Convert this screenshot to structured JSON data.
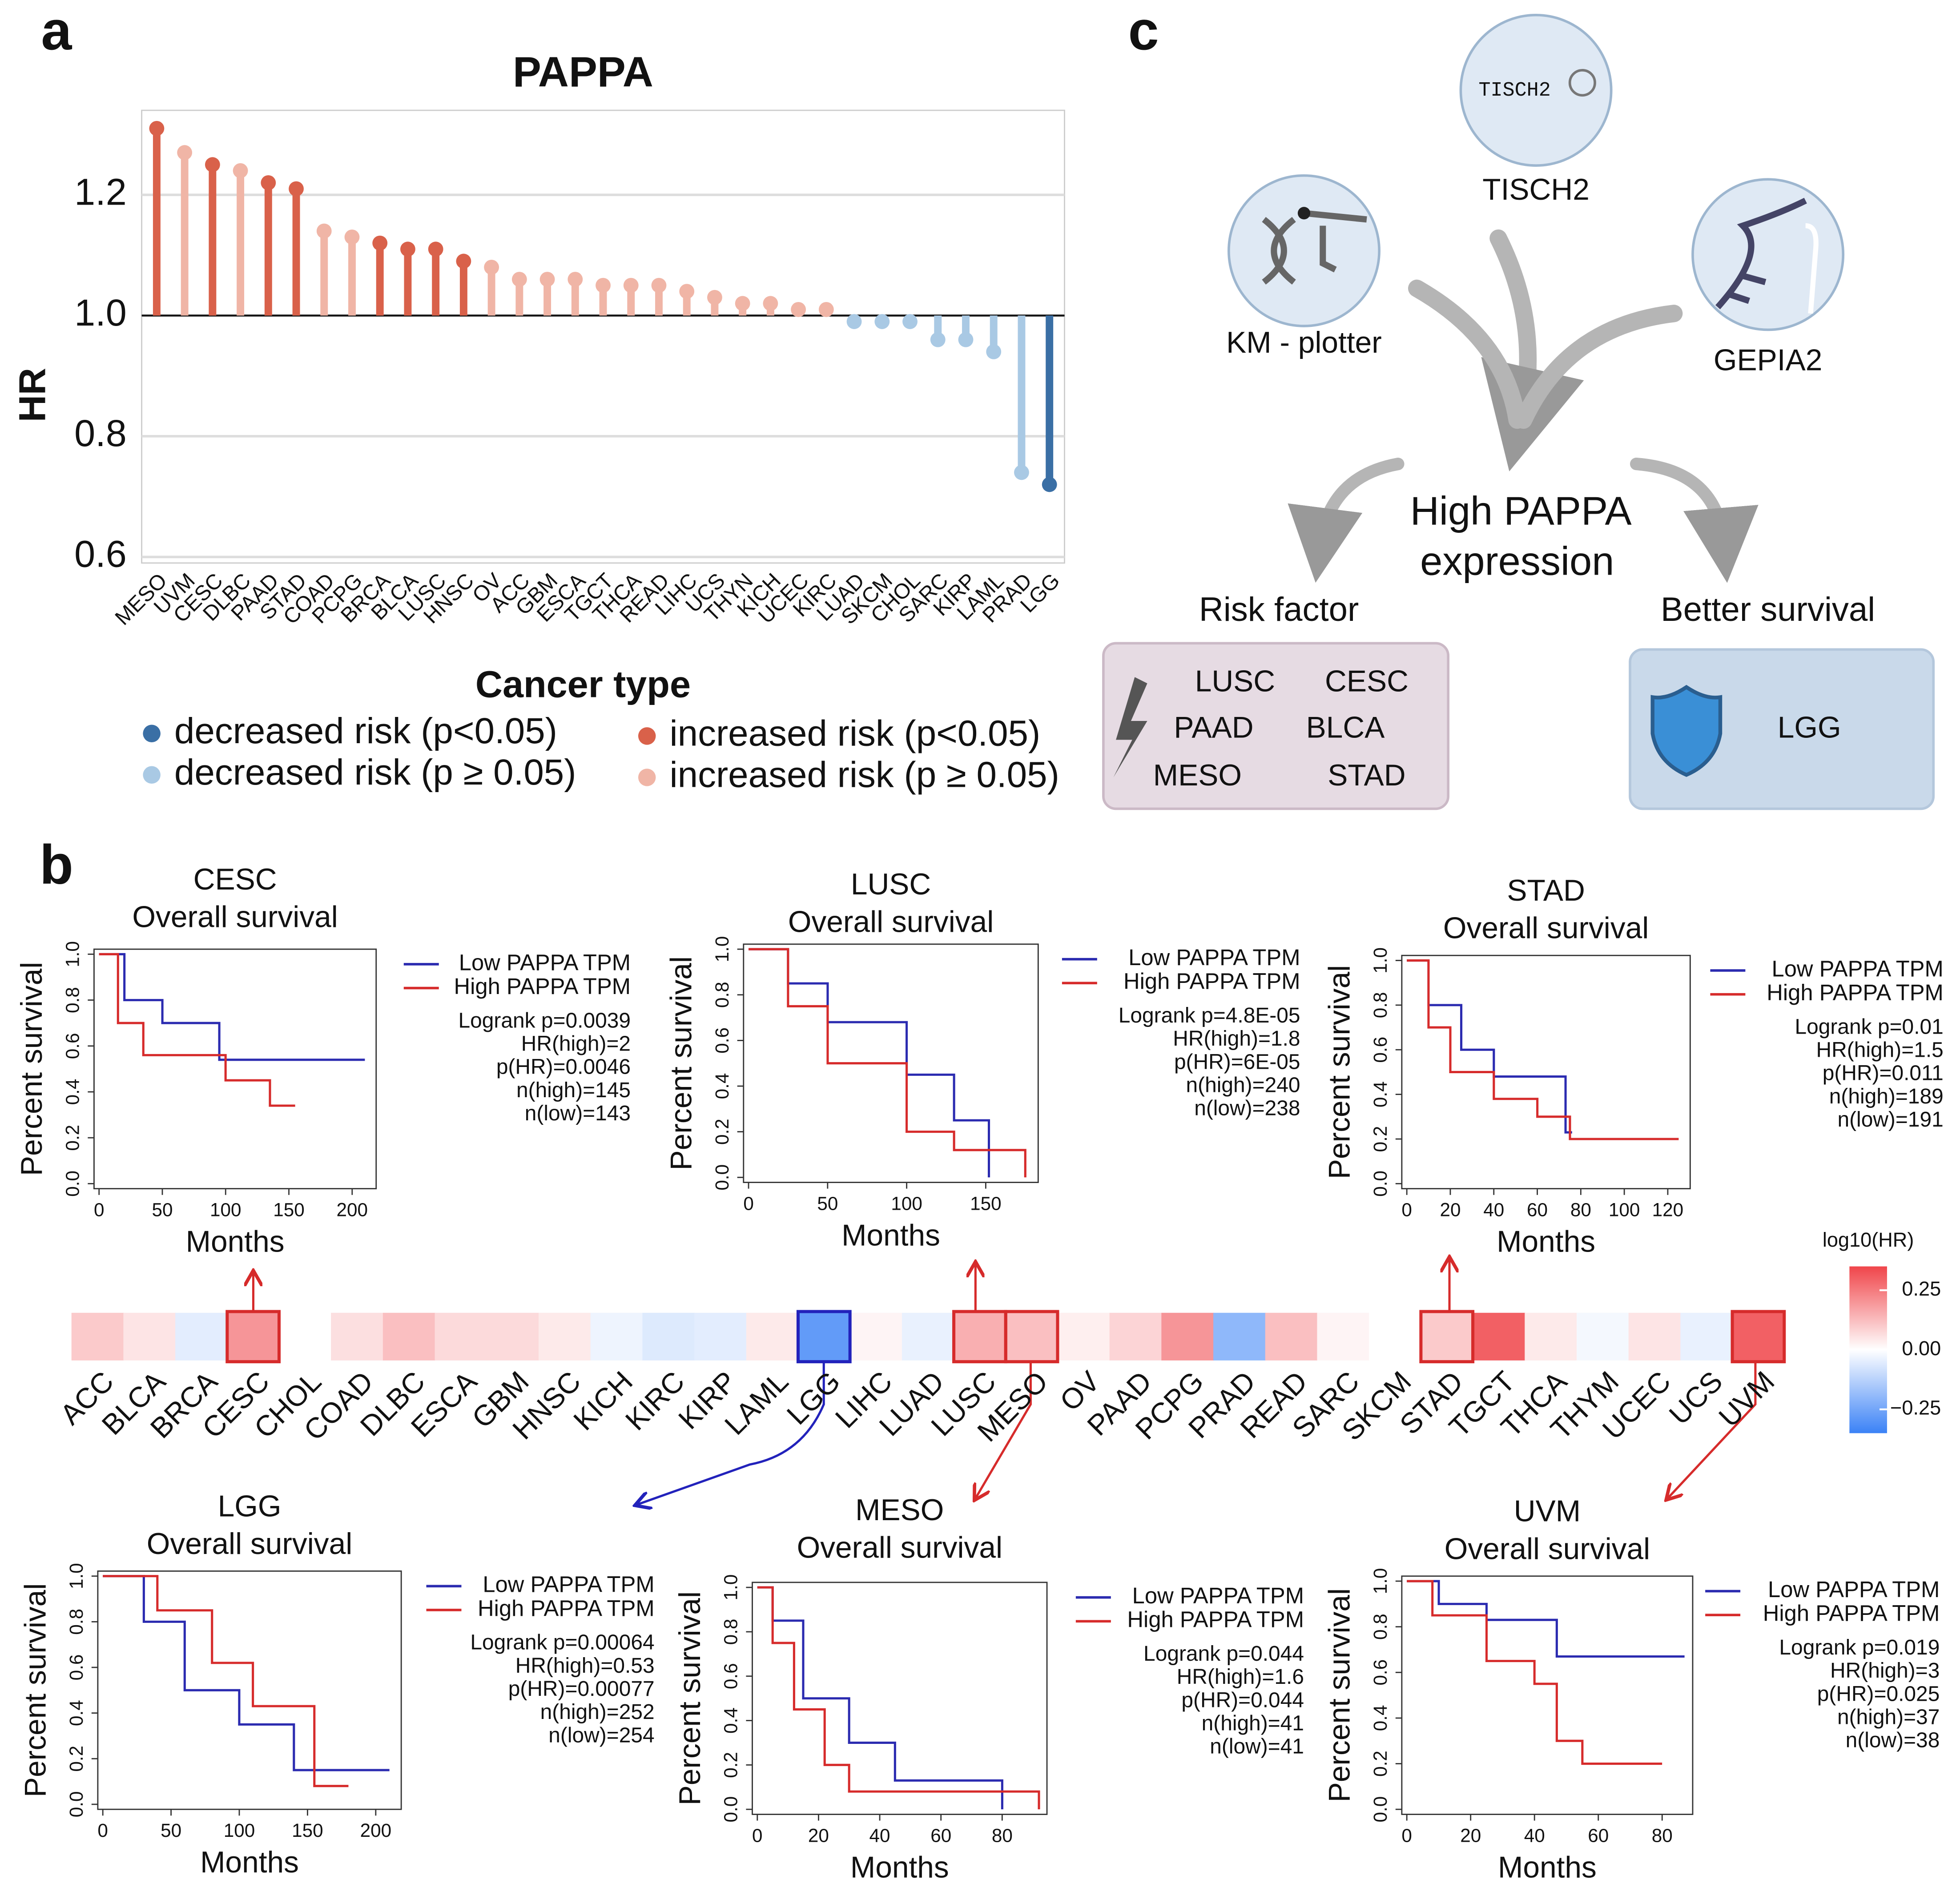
{
  "panel_labels": [
    "a",
    "b",
    "c"
  ],
  "chart_data": [
    {
      "type": "lollipop",
      "title": "PAPPA",
      "ylabel": "HR",
      "xlabel": "Cancer type",
      "categories": [
        "MESO",
        "UVM",
        "CESC",
        "DLBC",
        "PAAD",
        "STAD",
        "COAD",
        "PCPG",
        "BRCA",
        "BLCA",
        "LUSC",
        "HNSC",
        "OV",
        "ACC",
        "GBM",
        "ESCA",
        "TGCT",
        "THCA",
        "READ",
        "LIHC",
        "UCS",
        "THYN",
        "KICH",
        "UCEC",
        "KIRC",
        "LUAD",
        "SKCM",
        "CHOL",
        "SARC",
        "KIRP",
        "LAML",
        "PRAD",
        "LGG"
      ],
      "values": [
        1.31,
        1.27,
        1.25,
        1.24,
        1.22,
        1.21,
        1.14,
        1.13,
        1.12,
        1.11,
        1.11,
        1.09,
        1.08,
        1.06,
        1.06,
        1.06,
        1.05,
        1.05,
        1.05,
        1.04,
        1.03,
        1.02,
        1.02,
        1.01,
        1.01,
        0.99,
        0.99,
        0.99,
        0.96,
        0.96,
        0.94,
        0.74,
        0.72
      ],
      "colors": [
        "#d9614a",
        "#f0b5a6",
        "#d9614a",
        "#f0b5a6",
        "#d9614a",
        "#d9614a",
        "#f0b5a6",
        "#f0b5a6",
        "#d9614a",
        "#d9614a",
        "#d9614a",
        "#d9614a",
        "#f0b5a6",
        "#f0b5a6",
        "#f0b5a6",
        "#f0b5a6",
        "#f0b5a6",
        "#f0b5a6",
        "#f0b5a6",
        "#f0b5a6",
        "#f0b5a6",
        "#f0b5a6",
        "#f0b5a6",
        "#f0b5a6",
        "#f0b5a6",
        "#a9c9e4",
        "#a9c9e4",
        "#a9c9e4",
        "#a9c9e4",
        "#a9c9e4",
        "#a9c9e4",
        "#a9c9e4",
        "#3a6fa5"
      ],
      "baseline": 1,
      "ylim": [
        0.59,
        1.34
      ],
      "yticks": [
        0.6,
        0.8,
        {
          "value": 1,
          "label": "1.0"
        },
        1.2
      ],
      "grid": true,
      "legend": [
        {
          "name": "decreased risk (p<0.05)",
          "color": "#3a6fa5"
        },
        {
          "name": "decreased risk (p ≥ 0.05)",
          "color": "#a9c9e4"
        },
        {
          "name": "increased risk (p<0.05)",
          "color": "#d9614a"
        },
        {
          "name": "increased risk (p ≥ 0.05)",
          "color": "#f0b5a6"
        }
      ]
    },
    {
      "type": "heatmap",
      "title": "log10(HR)",
      "categories": [
        "ACC",
        "BLCA",
        "BRCA",
        "CESC",
        "CHOL",
        "COAD",
        "DLBC",
        "ESCA",
        "GBM",
        "HNSC",
        "KICH",
        "KIRC",
        "KIRP",
        "LAML",
        "LGG",
        "LIHC",
        "LUAD",
        "LUSC",
        "MESO",
        "OV",
        "PAAD",
        "PCPG",
        "PRAD",
        "READ",
        "SARC",
        "SKCM",
        "STAD",
        "TGCT",
        "THCA",
        "THYM",
        "UCEC",
        "UCS",
        "UVM"
      ],
      "values": [
        0.1,
        0.05,
        -0.05,
        0.2,
        0.0,
        0.06,
        0.12,
        0.07,
        0.07,
        0.04,
        -0.03,
        -0.06,
        -0.05,
        0.04,
        -0.28,
        0.02,
        -0.04,
        0.15,
        0.12,
        0.03,
        0.08,
        0.2,
        -0.2,
        0.12,
        0.02,
        0.0,
        0.1,
        0.3,
        0.04,
        -0.02,
        0.05,
        -0.04,
        0.3
      ],
      "highlight_index": [
        3,
        14,
        17,
        18,
        26,
        32
      ],
      "zlim": [
        -0.35,
        0.35
      ],
      "zticks": [
        0.25,
        {
          "value": 0,
          "label": "0.00"
        },
        {
          "value": -0.25,
          "label": "−0.25"
        }
      ]
    },
    {
      "type": "km",
      "title": "CESC",
      "subtitle": "Overall survival",
      "xlabel": "Months",
      "ylabel": "Percent survival",
      "xlim": [
        0,
        215
      ],
      "xticks": [
        0,
        50,
        100,
        150,
        200
      ],
      "ylim": [
        0,
        1
      ],
      "yticks": [
        {
          "value": 0,
          "label": "0.0"
        },
        0.2,
        0.4,
        0.6,
        0.8,
        {
          "value": 1,
          "label": "1.0"
        }
      ],
      "series": [
        {
          "name": "Low PAPPA TPM",
          "color": "#2b2bb0",
          "x": [
            0,
            20,
            20,
            50,
            50,
            95,
            95,
            210
          ],
          "values": [
            1,
            1,
            0.8,
            0.8,
            0.7,
            0.7,
            0.54,
            0.54
          ]
        },
        {
          "name": "High PAPPA TPM",
          "color": "#d62b2b",
          "x": [
            0,
            15,
            15,
            35,
            35,
            100,
            100,
            135,
            135,
            155
          ],
          "values": [
            1,
            1,
            0.7,
            0.7,
            0.56,
            0.56,
            0.45,
            0.45,
            0.34,
            0.34
          ]
        }
      ],
      "annotations": [
        "Logrank p=0.0039",
        "HR(high)=2",
        "p(HR)=0.0046",
        "n(high)=145",
        "n(low)=143"
      ]
    },
    {
      "type": "km",
      "title": "LUSC",
      "subtitle": "Overall survival",
      "xlabel": "Months",
      "ylabel": "Percent survival",
      "xlim": [
        0,
        180
      ],
      "xticks": [
        0,
        50,
        100,
        150
      ],
      "ylim": [
        0,
        1
      ],
      "yticks": [
        {
          "value": 0,
          "label": "0.0"
        },
        0.2,
        0.4,
        0.6,
        0.8,
        {
          "value": 1,
          "label": "1.0"
        }
      ],
      "series": [
        {
          "name": "Low PAPPA TPM",
          "color": "#2b2bb0",
          "x": [
            0,
            25,
            25,
            50,
            50,
            100,
            100,
            130,
            130,
            152,
            152
          ],
          "values": [
            1,
            1,
            0.85,
            0.85,
            0.68,
            0.68,
            0.45,
            0.45,
            0.25,
            0.25,
            0
          ]
        },
        {
          "name": "High PAPPA TPM",
          "color": "#d62b2b",
          "x": [
            0,
            25,
            25,
            50,
            50,
            100,
            100,
            130,
            130,
            175,
            175
          ],
          "values": [
            1,
            1,
            0.75,
            0.75,
            0.5,
            0.5,
            0.2,
            0.2,
            0.12,
            0.12,
            0
          ]
        }
      ],
      "annotations": [
        "Logrank p=4.8E-05",
        "HR(high)=1.8",
        "p(HR)=6E-05",
        "n(high)=240",
        "n(low)=238"
      ]
    },
    {
      "type": "km",
      "title": "STAD",
      "subtitle": "Overall survival",
      "xlabel": "Months",
      "ylabel": "Percent survival",
      "xlim": [
        0,
        128
      ],
      "xticks": [
        0,
        20,
        40,
        60,
        80,
        100,
        120
      ],
      "ylim": [
        0,
        1
      ],
      "yticks": [
        {
          "value": 0,
          "label": "0.0"
        },
        0.2,
        0.4,
        0.6,
        0.8,
        {
          "value": 1,
          "label": "1.0"
        }
      ],
      "series": [
        {
          "name": "Low PAPPA TPM",
          "color": "#2b2bb0",
          "x": [
            0,
            10,
            10,
            25,
            25,
            40,
            40,
            73,
            73,
            76
          ],
          "values": [
            1,
            1,
            0.8,
            0.8,
            0.6,
            0.6,
            0.48,
            0.48,
            0.23,
            0.23
          ]
        },
        {
          "name": "High PAPPA TPM",
          "color": "#d62b2b",
          "x": [
            0,
            10,
            10,
            20,
            20,
            40,
            40,
            60,
            60,
            75,
            75,
            125
          ],
          "values": [
            1,
            1,
            0.7,
            0.7,
            0.5,
            0.5,
            0.38,
            0.38,
            0.3,
            0.3,
            0.2,
            0.2
          ]
        }
      ],
      "annotations": [
        "Logrank p=0.01",
        "HR(high)=1.5",
        "p(HR)=0.011",
        "n(high)=189",
        "n(low)=191"
      ]
    },
    {
      "type": "km",
      "title": "LGG",
      "subtitle": "Overall survival",
      "xlabel": "Months",
      "ylabel": "Percent survival",
      "xlim": [
        0,
        215
      ],
      "xticks": [
        0,
        50,
        100,
        150,
        200
      ],
      "ylim": [
        0,
        1
      ],
      "yticks": [
        {
          "value": 0,
          "label": "0.0"
        },
        0.2,
        0.4,
        0.6,
        0.8,
        {
          "value": 1,
          "label": "1.0"
        }
      ],
      "series": [
        {
          "name": "Low PAPPA TPM",
          "color": "#2b2bb0",
          "x": [
            0,
            30,
            30,
            60,
            60,
            100,
            100,
            140,
            140,
            210
          ],
          "values": [
            1,
            1,
            0.8,
            0.8,
            0.5,
            0.5,
            0.35,
            0.35,
            0.15,
            0.15
          ]
        },
        {
          "name": "High PAPPA TPM",
          "color": "#d62b2b",
          "x": [
            0,
            40,
            40,
            80,
            80,
            110,
            110,
            155,
            155,
            180
          ],
          "values": [
            1,
            1,
            0.85,
            0.85,
            0.62,
            0.62,
            0.43,
            0.43,
            0.08,
            0.08
          ]
        }
      ],
      "annotations": [
        "Logrank p=0.00064",
        "HR(high)=0.53",
        "p(HR)=0.00077",
        "n(high)=252",
        "n(low)=254"
      ]
    },
    {
      "type": "km",
      "title": "MESO",
      "subtitle": "Overall survival",
      "xlabel": "Months",
      "ylabel": "Percent survival",
      "xlim": [
        0,
        93
      ],
      "xticks": [
        0,
        20,
        40,
        60,
        80
      ],
      "ylim": [
        0,
        1
      ],
      "yticks": [
        {
          "value": 0,
          "label": "0.0"
        },
        0.2,
        0.4,
        0.6,
        0.8,
        {
          "value": 1,
          "label": "1.0"
        }
      ],
      "series": [
        {
          "name": "Low PAPPA TPM",
          "color": "#2b2bb0",
          "x": [
            0,
            5,
            5,
            15,
            15,
            30,
            30,
            45,
            45,
            80,
            80
          ],
          "values": [
            1,
            1,
            0.85,
            0.85,
            0.5,
            0.5,
            0.3,
            0.3,
            0.13,
            0.13,
            0
          ]
        },
        {
          "name": "High PAPPA TPM",
          "color": "#d62b2b",
          "x": [
            0,
            5,
            5,
            12,
            12,
            22,
            22,
            30,
            30,
            92,
            92
          ],
          "values": [
            1,
            1,
            0.75,
            0.75,
            0.45,
            0.45,
            0.2,
            0.2,
            0.08,
            0.08,
            0
          ]
        }
      ],
      "annotations": [
        "Logrank p=0.044",
        "HR(high)=1.6",
        "p(HR)=0.044",
        "n(high)=41",
        "n(low)=41"
      ]
    },
    {
      "type": "km",
      "title": "UVM",
      "subtitle": "Overall survival",
      "xlabel": "Months",
      "ylabel": "Percent survival",
      "xlim": [
        0,
        88
      ],
      "xticks": [
        0,
        20,
        40,
        60,
        80
      ],
      "ylim": [
        0,
        1
      ],
      "yticks": [
        {
          "value": 0,
          "label": "0.0"
        },
        0.2,
        0.4,
        0.6,
        0.8,
        {
          "value": 1,
          "label": "1.0"
        }
      ],
      "series": [
        {
          "name": "Low PAPPA TPM",
          "color": "#2b2bb0",
          "x": [
            0,
            10,
            10,
            25,
            25,
            47,
            47,
            87
          ],
          "values": [
            1,
            1,
            0.9,
            0.9,
            0.83,
            0.83,
            0.67,
            0.67
          ]
        },
        {
          "name": "High PAPPA TPM",
          "color": "#d62b2b",
          "x": [
            0,
            8,
            8,
            25,
            25,
            40,
            40,
            47,
            47,
            55,
            55,
            80
          ],
          "values": [
            1,
            1,
            0.85,
            0.85,
            0.65,
            0.65,
            0.55,
            0.55,
            0.3,
            0.3,
            0.2,
            0.2
          ]
        }
      ],
      "annotations": [
        "Logrank p=0.019",
        "HR(high)=3",
        "p(HR)=0.025",
        "n(high)=37",
        "n(low)=38"
      ]
    }
  ],
  "diagram": {
    "logo": "TISCH2",
    "tools": [
      "TISCH2",
      "KM - plotter",
      "GEPIA2"
    ],
    "center": [
      "High PAPPA",
      "expression"
    ],
    "risk_title": "Risk factor",
    "risk_items": [
      "LUSC",
      "CESC",
      "PAAD",
      "BLCA",
      "MESO",
      "STAD"
    ],
    "survival_title": "Better survival",
    "survival_items": [
      "LGG"
    ]
  }
}
